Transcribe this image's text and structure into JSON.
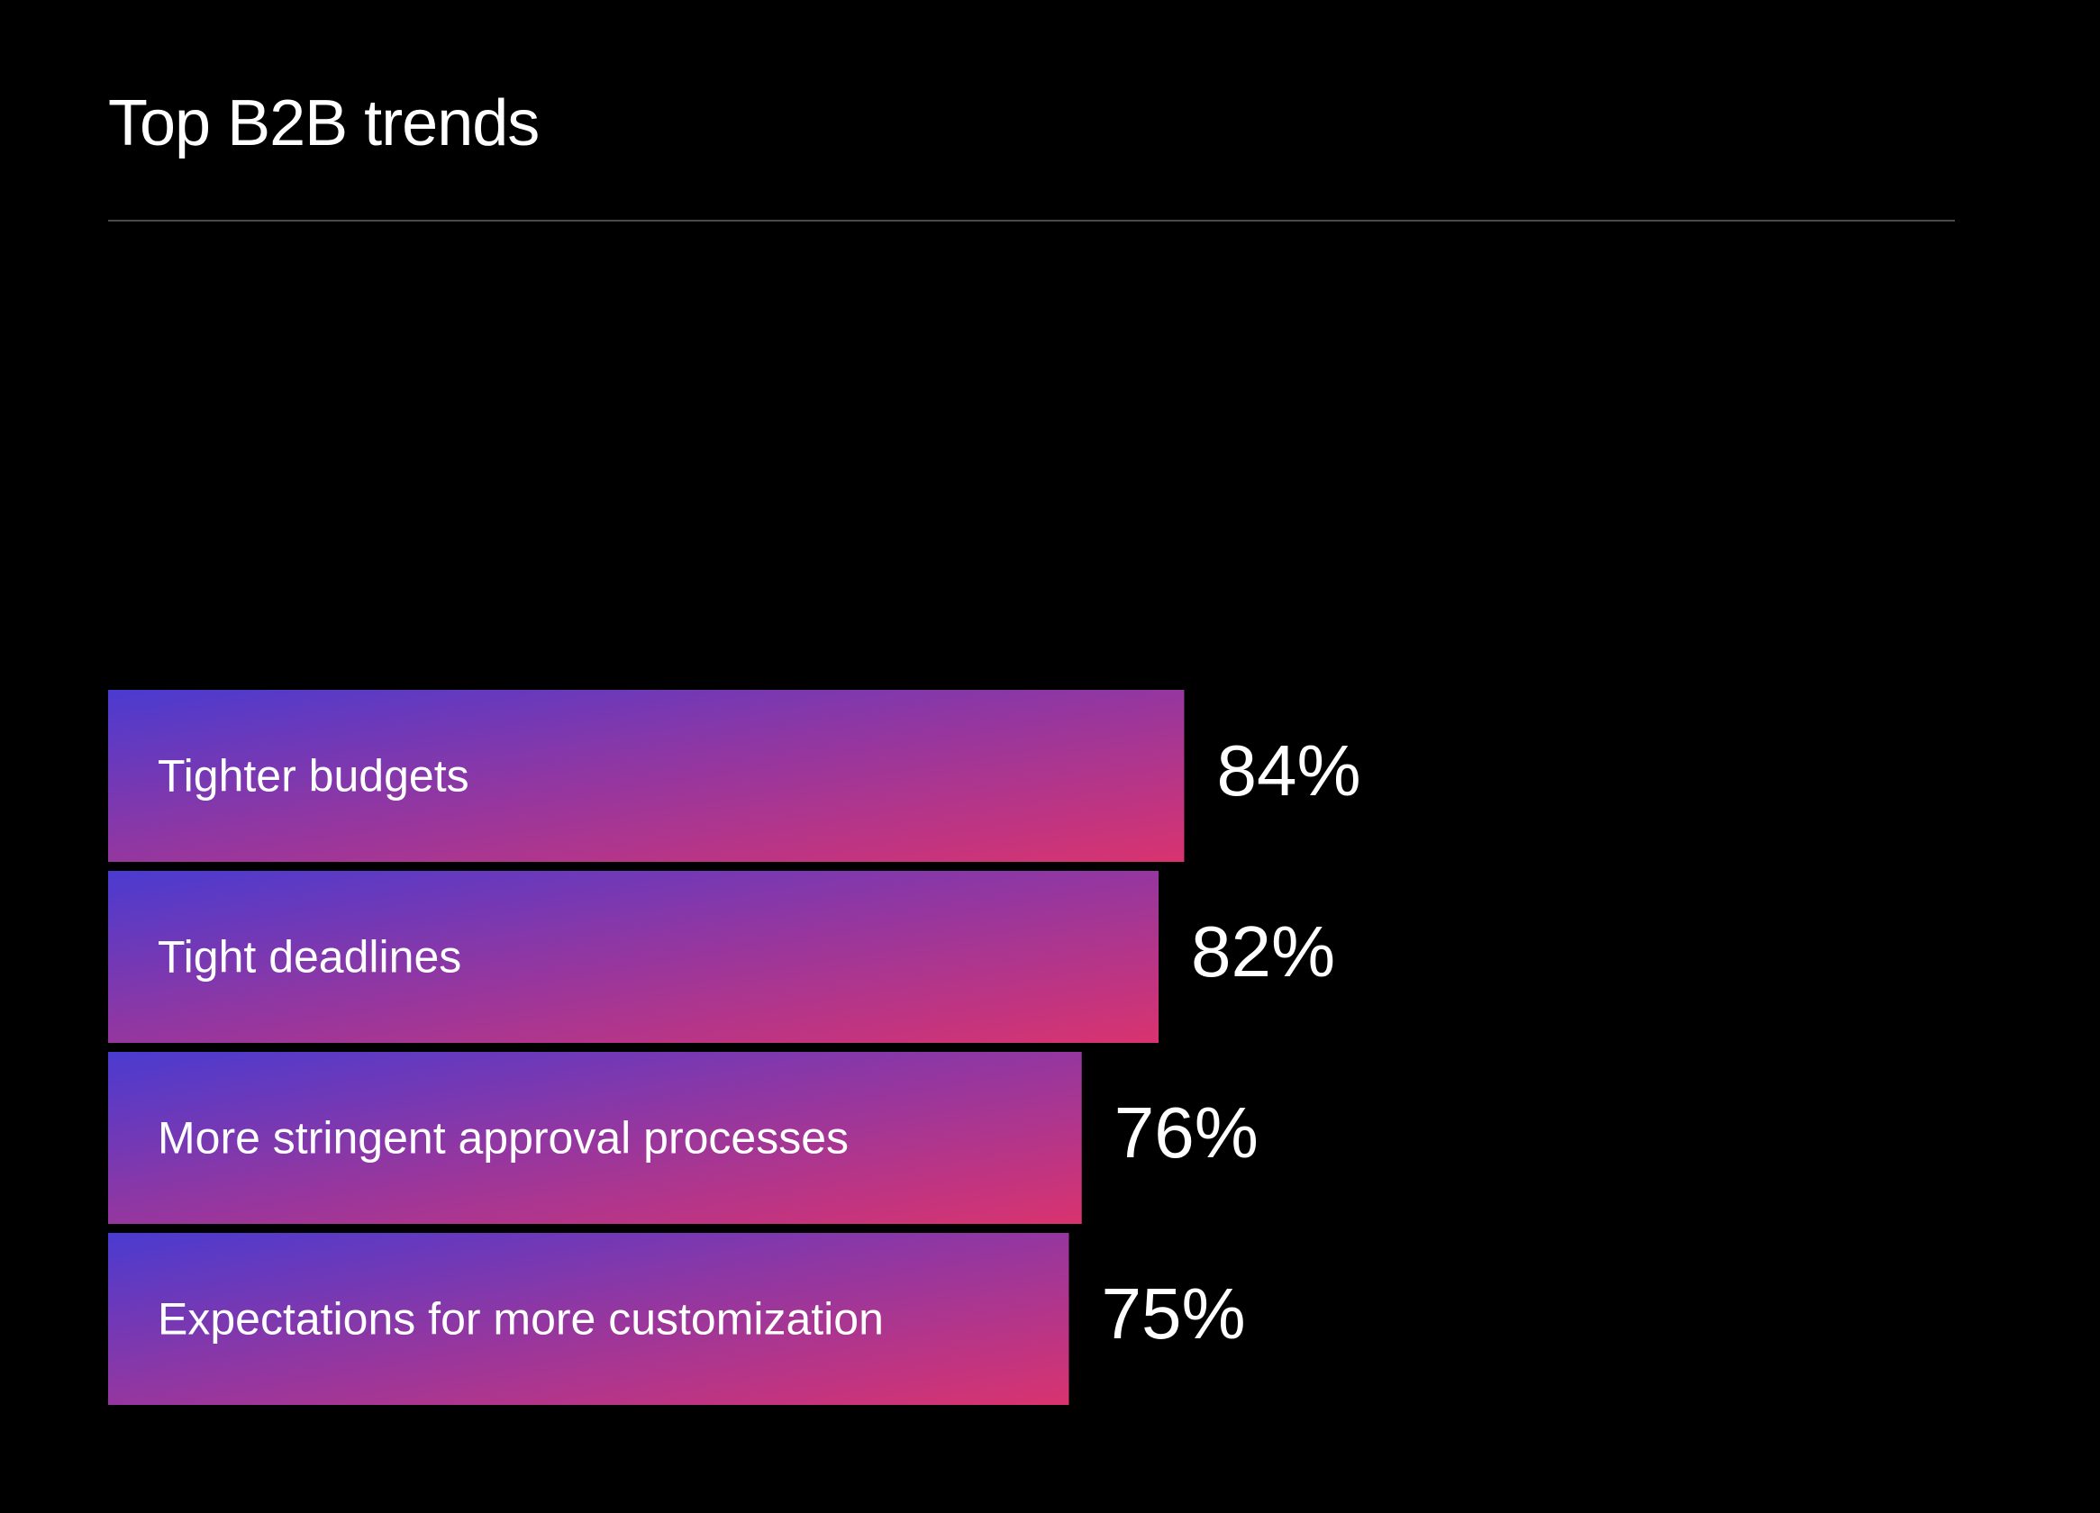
{
  "chart_data": {
    "type": "bar",
    "orientation": "horizontal",
    "title": "Top B2B trends",
    "categories": [
      "Tighter budgets",
      "Tight deadlines",
      "More stringent approval processes",
      "Expectations for more customization"
    ],
    "values": [
      84,
      82,
      76,
      75
    ],
    "value_labels": [
      "84%",
      "82%",
      "76%",
      "75%"
    ],
    "unit": "%",
    "xlim": [
      0,
      100
    ],
    "grid": false,
    "legend": "none",
    "colors": {
      "background": "#000000",
      "bar_gradient_start": "#4a3bd0",
      "bar_gradient_mid": "#8e37a4",
      "bar_gradient_end": "#d9336f",
      "text": "#ffffff",
      "rule": "#4a4a4a"
    }
  }
}
